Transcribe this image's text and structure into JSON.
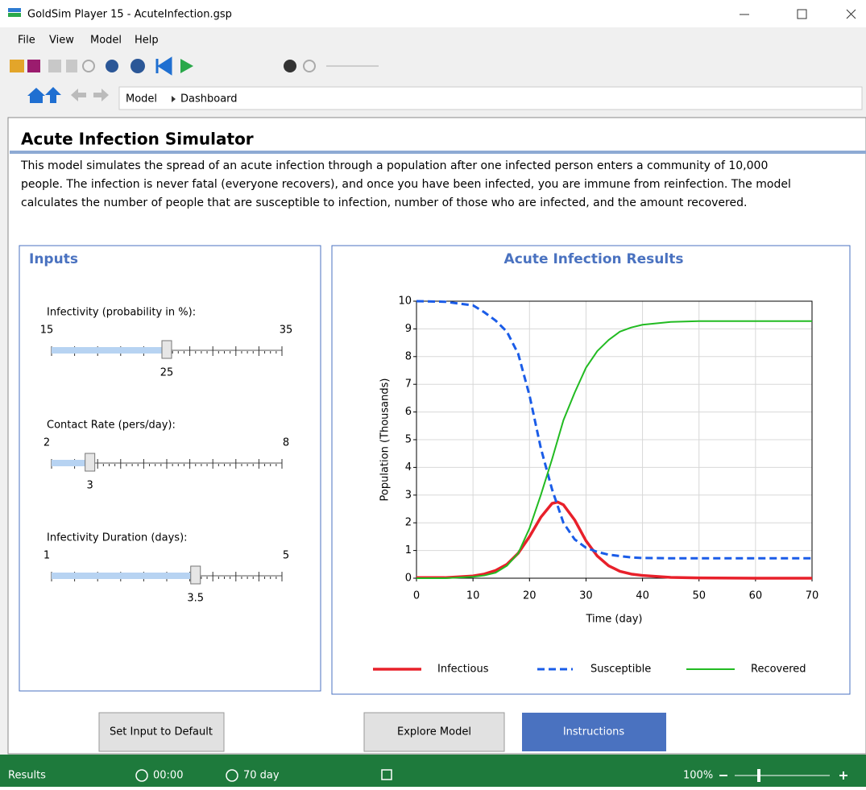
{
  "window": {
    "title": "GoldSim Player 15  - AcuteInfection.gsp"
  },
  "menu": [
    "File",
    "View",
    "Model",
    "Help"
  ],
  "breadcrumb": [
    "Model",
    "Dashboard"
  ],
  "dashboard": {
    "title": "Acute Infection Simulator",
    "description": [
      "This model simulates the spread of an acute infection through a population after one infected person enters a community of 10,000",
      "people.  The infection is never fatal (everyone recovers), and once you have been infected, you are immune from reinfection. The model",
      "calculates the number of people that are susceptible to infection, number of those who are infected, and the amount recovered."
    ]
  },
  "inputs": {
    "title": "Inputs",
    "sliders": [
      {
        "label": "Infectivity (probability in %):",
        "min": 15,
        "max": 35,
        "value": 25
      },
      {
        "label": "Contact Rate (pers/day):",
        "min": 2,
        "max": 8,
        "value": 3
      },
      {
        "label": "Infectivity Duration (days):",
        "min": 1,
        "max": 5,
        "value": 3.5
      }
    ]
  },
  "chart_data": {
    "type": "line",
    "title": "Acute Infection Results",
    "xlabel": "Time (day)",
    "ylabel": "Population (Thousands)",
    "x": [
      0,
      5,
      10,
      12,
      14,
      16,
      18,
      20,
      22,
      24,
      25,
      26,
      28,
      30,
      32,
      34,
      36,
      38,
      40,
      45,
      50,
      60,
      70
    ],
    "series": [
      {
        "name": "Infectious",
        "color": "#e8202a",
        "dash": false,
        "values": [
          0.02,
          0.02,
          0.08,
          0.15,
          0.28,
          0.5,
          0.9,
          1.5,
          2.2,
          2.7,
          2.75,
          2.65,
          2.1,
          1.35,
          0.8,
          0.45,
          0.25,
          0.15,
          0.1,
          0.03,
          0.01,
          0,
          0
        ]
      },
      {
        "name": "Susceptible",
        "color": "#1a5ce8",
        "dash": true,
        "values": [
          10,
          9.98,
          9.85,
          9.6,
          9.3,
          8.9,
          8.1,
          6.6,
          4.7,
          3.2,
          2.6,
          2.0,
          1.4,
          1.1,
          0.95,
          0.85,
          0.8,
          0.75,
          0.73,
          0.72,
          0.72,
          0.72,
          0.72
        ]
      },
      {
        "name": "Recovered",
        "color": "#22bb22",
        "dash": false,
        "values": [
          0,
          0,
          0.05,
          0.1,
          0.2,
          0.45,
          0.9,
          1.8,
          3.0,
          4.3,
          5.0,
          5.7,
          6.7,
          7.6,
          8.2,
          8.6,
          8.9,
          9.05,
          9.15,
          9.25,
          9.28,
          9.28,
          9.28
        ]
      }
    ],
    "xlim": [
      0,
      70
    ],
    "xticks": [
      0,
      10,
      20,
      30,
      40,
      50,
      60,
      70
    ],
    "ylim": [
      0,
      10
    ],
    "yticks": [
      0,
      1,
      2,
      3,
      4,
      5,
      6,
      7,
      8,
      9,
      10
    ],
    "grid": true,
    "legend": "bottom"
  },
  "buttons": [
    "Set Input to Default",
    "Explore Model",
    "Instructions"
  ],
  "status": [
    "Results",
    "00:00",
    "70 day",
    "100%"
  ]
}
